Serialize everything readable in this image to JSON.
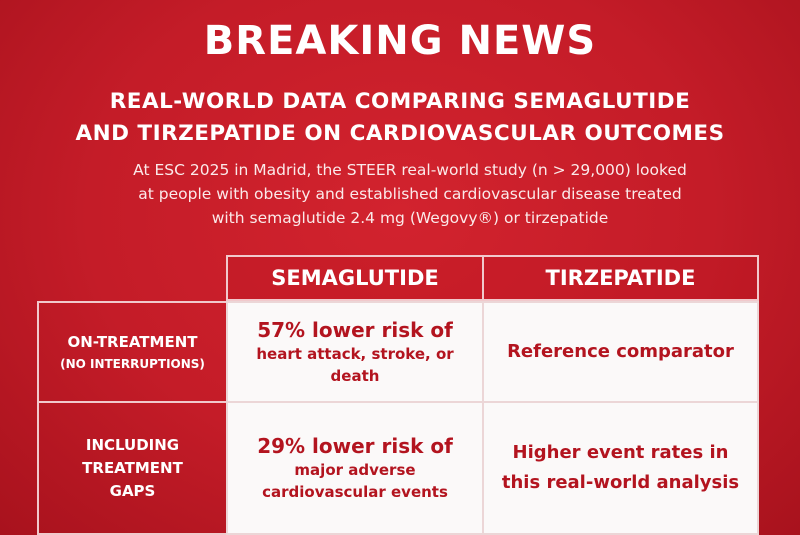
{
  "headline": "BREAKING NEWS",
  "subhead_line1": "REAL-WORLD DATA COMPARING SEMAGLUTIDE",
  "subhead_line2": "AND TIRZEPATIDE ON CARDIOVASCULAR OUTCOMES",
  "intro_line1": "At ESC 2025 in Madrid, the STEER real-world study (n > 29,000) looked",
  "intro_line2": "at people with obesity and established cardiovascular disease treated",
  "intro_line3": "with semaglutide 2.4 mg (Wegovy®) or tirzepatide",
  "table": {
    "col1_header": "SEMAGLUTIDE",
    "col2_header": "TIRZEPATIDE",
    "row1": {
      "label_line1": "ON-TREATMENT",
      "label_line2": "(NO INTERRUPTIONS)",
      "sema_main": "57% lower risk of",
      "sema_detail": "heart attack, stroke, or death",
      "tirz": "Reference comparator"
    },
    "row2": {
      "label_line1": "INCLUDING",
      "label_line2": "TREATMENT",
      "label_line3": "GAPS",
      "sema_main": "29% lower risk of",
      "sema_detail": "major adverse cardiovascular events",
      "tirz_line1": "Higher event rates in",
      "tirz_line2": "this real-world analysis"
    }
  },
  "colors": {
    "background": "#c41c28",
    "cell_text": "#b3141f",
    "cell_bg": "#fbf9f9"
  }
}
